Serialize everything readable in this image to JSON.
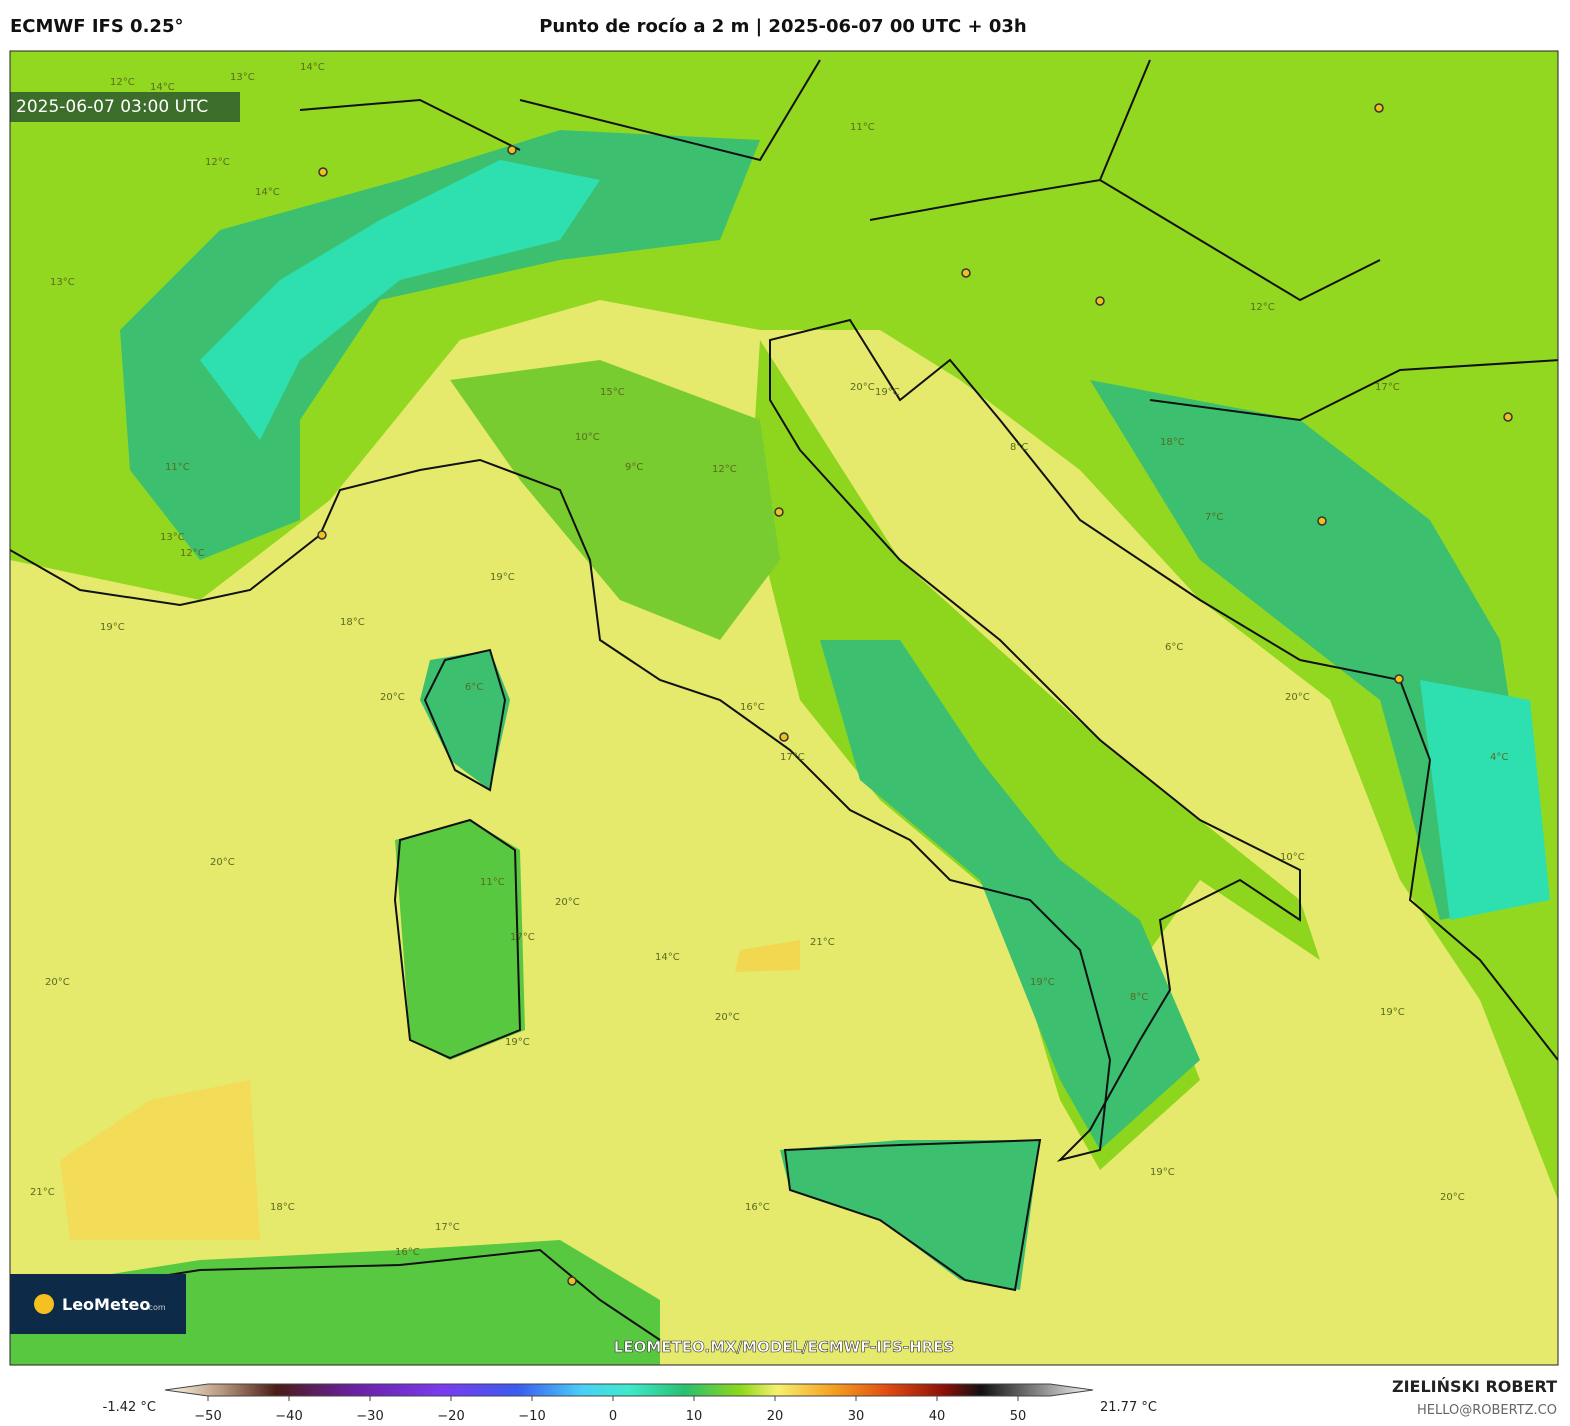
{
  "header": {
    "model": "ECMWF IFS 0.25°",
    "title": "Punto de rocío a 2 m | 2025-06-07 00 UTC + 03h"
  },
  "map": {
    "timestamp": "2025-06-07 03:00 UTC",
    "watermark": "LEOMETEO.MX/MODEL/ECMWF-IFS-HRES",
    "logo": "LeoMeteo",
    "logo_suffix": ".com",
    "contour_labels": [
      "12°C",
      "13°C",
      "14°C",
      "12°C",
      "14°C",
      "11°C",
      "13°C",
      "12°C",
      "11°C",
      "15°C",
      "10°C",
      "9°C",
      "12°C",
      "20°C",
      "19°C",
      "17°C",
      "18°C",
      "19°C",
      "19°C",
      "18°C",
      "20°C",
      "16°C",
      "17°C",
      "21°C",
      "20°C",
      "20°C",
      "20°C",
      "19°C",
      "20°C",
      "19°C",
      "21°C",
      "18°C",
      "17°C",
      "16°C",
      "19°C",
      "19°C",
      "20°C",
      "8°C",
      "6°C",
      "11°C",
      "10°C",
      "8°C",
      "14°C",
      "17°C",
      "7°C",
      "6°C",
      "4°C",
      "20°C",
      "16°C",
      "14°C",
      "13°C",
      "12°C"
    ]
  },
  "colorbar": {
    "min_label": "-1.42 °C",
    "max_label": "21.77 °C",
    "ticks": [
      {
        "value": -50,
        "label": "−50"
      },
      {
        "value": -40,
        "label": "−40"
      },
      {
        "value": -30,
        "label": "−30"
      },
      {
        "value": -20,
        "label": "−20"
      },
      {
        "value": -10,
        "label": "−10"
      },
      0,
      10,
      20,
      30,
      40,
      50
    ]
  },
  "footer": {
    "author": "ZIELIŃSKI ROBERT",
    "email": "HELLO@ROBERTZ.CO"
  }
}
